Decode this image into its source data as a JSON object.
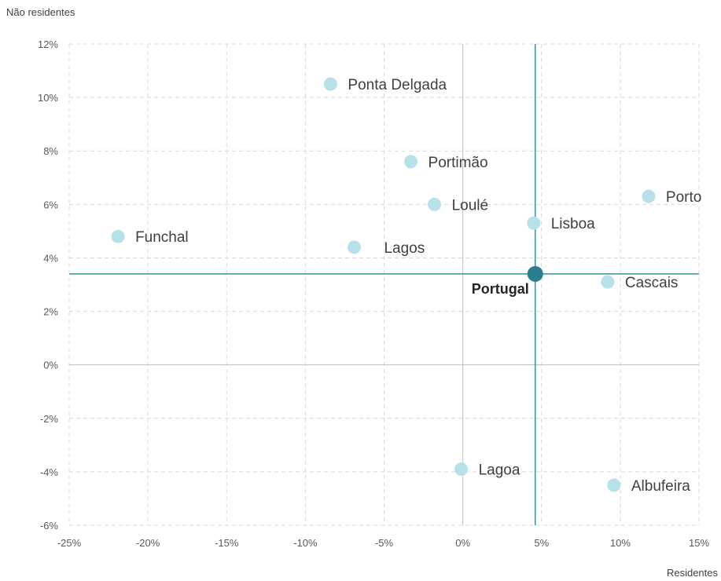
{
  "chart_data": {
    "type": "scatter",
    "xlabel": "Residentes",
    "ylabel": "Não residentes",
    "xlim": [
      -25,
      15
    ],
    "ylim": [
      -6,
      12
    ],
    "x_ticks": [
      -25,
      -20,
      -15,
      -10,
      -5,
      0,
      5,
      10,
      15
    ],
    "y_ticks": [
      -6,
      -4,
      -2,
      0,
      2,
      4,
      6,
      8,
      10,
      12
    ],
    "x_tick_labels": [
      "-25%",
      "-20%",
      "-15%",
      "-10%",
      "-5%",
      "0%",
      "5%",
      "10%",
      "15%"
    ],
    "y_tick_labels": [
      "-6%",
      "-4%",
      "-2%",
      "0%",
      "2%",
      "4%",
      "6%",
      "8%",
      "10%",
      "12%"
    ],
    "grid": true,
    "reference_lines": {
      "x": 4.6,
      "y": 3.4
    },
    "colors": {
      "point": "#b7e1e8",
      "highlight": "#2a7f8f",
      "reference": "#3a8f9c",
      "grid": "#d9d9d9",
      "zero_axis": "#bfbfbf"
    },
    "points": [
      {
        "label": "Ponta Delgada",
        "x": -8.4,
        "y": 10.5
      },
      {
        "label": "Portimão",
        "x": -3.3,
        "y": 7.6
      },
      {
        "label": "Loulé",
        "x": -1.8,
        "y": 6.0
      },
      {
        "label": "Porto",
        "x": 11.8,
        "y": 6.3
      },
      {
        "label": "Lisboa",
        "x": 4.5,
        "y": 5.3
      },
      {
        "label": "Funchal",
        "x": -21.9,
        "y": 4.8
      },
      {
        "label": "Lagos",
        "x": -6.9,
        "y": 4.4
      },
      {
        "label": "Cascais",
        "x": 9.2,
        "y": 3.1
      },
      {
        "label": "Lagoa",
        "x": -0.1,
        "y": -3.9
      },
      {
        "label": "Albufeira",
        "x": 9.6,
        "y": -4.5
      }
    ],
    "highlight_point": {
      "label": "Portugal",
      "x": 4.6,
      "y": 3.4
    }
  }
}
